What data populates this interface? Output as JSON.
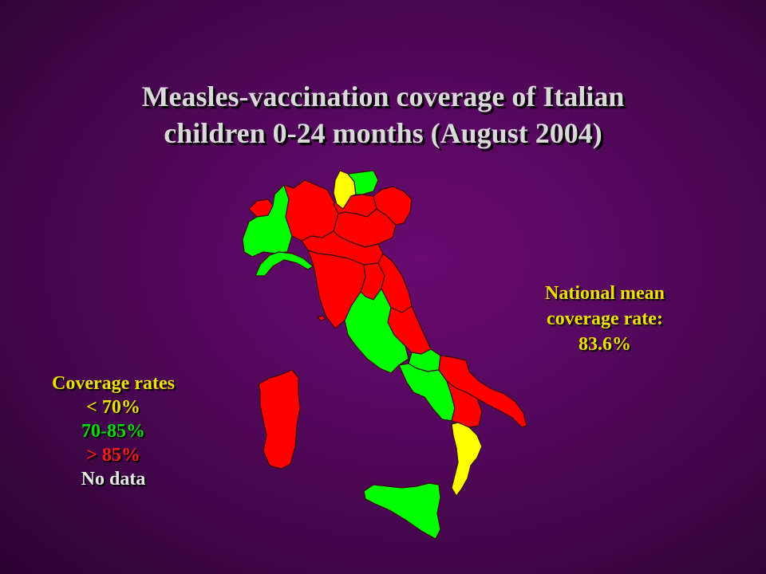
{
  "title": {
    "line1": "Measles-vaccination coverage of Italian",
    "line2": "children 0-24 months (August 2004)"
  },
  "national": {
    "line1": "National mean",
    "line2": "coverage rate:",
    "line3": "83.6%",
    "color": "#f0e000"
  },
  "legend": {
    "heading": "Coverage rates",
    "items": [
      {
        "label": "< 70%",
        "color": "#f0e000"
      },
      {
        "label": "70-85%",
        "color": "#00e000"
      },
      {
        "label": "> 85%",
        "color": "#ff1a1a"
      },
      {
        "label": "No data",
        "color": "#e8e8e8"
      }
    ]
  },
  "colors": {
    "low": "#ffff00",
    "mid": "#00ff00",
    "high": "#ff0000",
    "border": "#3a0a0a"
  }
}
